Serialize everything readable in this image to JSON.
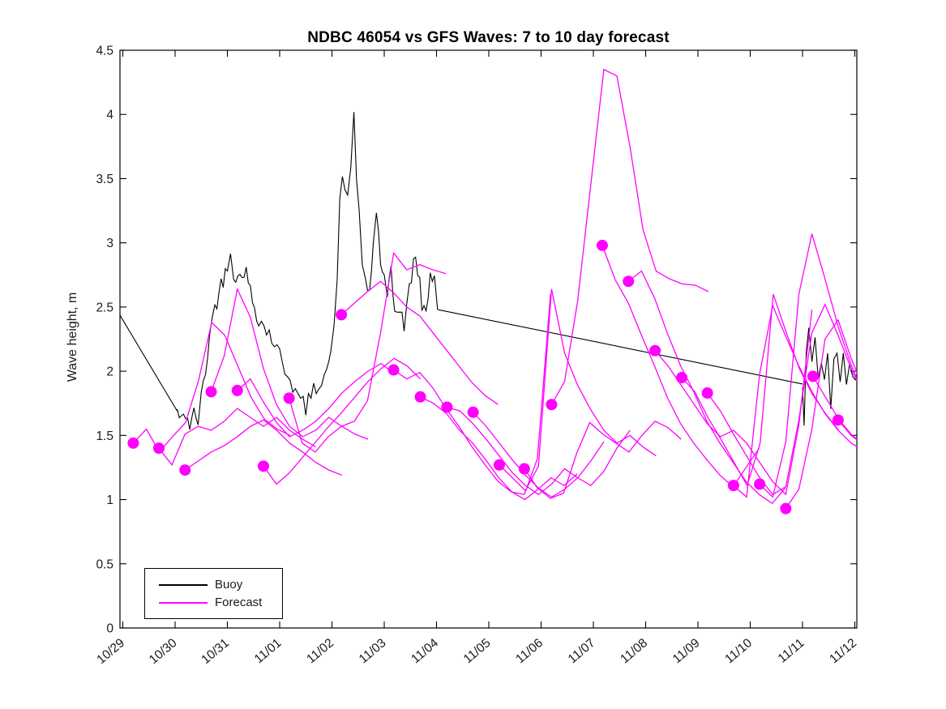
{
  "title": "NDBC 46054 vs GFS Waves: 7 to 10 day forecast",
  "ylabel": "Wave height, m",
  "legend": {
    "items": [
      {
        "label": "Buoy",
        "color": "#000000"
      },
      {
        "label": "Forecast",
        "color": "#ff00ff"
      }
    ]
  },
  "chart_data": {
    "type": "line",
    "title": "NDBC 46054 vs GFS Waves: 7 to 10 day forecast",
    "xlabel": "",
    "ylabel": "Wave height, m",
    "x_tick_labels": [
      "10/29",
      "10/30",
      "10/31",
      "11/01",
      "11/02",
      "11/03",
      "11/04",
      "11/05",
      "11/06",
      "11/07",
      "11/08",
      "11/09",
      "11/10",
      "11/11",
      "11/12"
    ],
    "yticks": [
      0,
      0.5,
      1,
      1.5,
      2,
      2.5,
      3,
      3.5,
      4,
      4.5
    ],
    "ylim": [
      0,
      4.5
    ],
    "xlim_days": [
      -0.06,
      14.06
    ],
    "grid": false,
    "legend_position": "bottom-left",
    "colors": {
      "buoy": "#000000",
      "forecast": "#ff00ff"
    },
    "units": "m",
    "buoy_noise": {
      "amplitude": 0.075,
      "step_days": 0.045,
      "seed": 42
    },
    "buoy_segments": [
      {
        "noisy": false,
        "points": [
          [
            -0.06,
            2.44
          ],
          [
            1.04,
            1.69
          ]
        ]
      },
      {
        "noisy": true,
        "points": [
          [
            1.04,
            1.69
          ],
          [
            1.12,
            1.6
          ],
          [
            1.2,
            1.68
          ],
          [
            1.28,
            1.58
          ],
          [
            1.36,
            1.66
          ],
          [
            1.44,
            1.62
          ],
          [
            1.5,
            1.78
          ],
          [
            1.58,
            2.0
          ],
          [
            1.66,
            2.28
          ],
          [
            1.76,
            2.5
          ],
          [
            1.84,
            2.62
          ],
          [
            1.92,
            2.72
          ],
          [
            2.0,
            2.85
          ],
          [
            2.06,
            2.95
          ],
          [
            2.12,
            2.78
          ],
          [
            2.2,
            2.7
          ],
          [
            2.28,
            2.8
          ],
          [
            2.36,
            2.76
          ],
          [
            2.44,
            2.62
          ],
          [
            2.52,
            2.5
          ],
          [
            2.6,
            2.42
          ],
          [
            2.7,
            2.34
          ],
          [
            2.8,
            2.3
          ],
          [
            2.9,
            2.22
          ],
          [
            3.0,
            2.12
          ],
          [
            3.1,
            2.02
          ],
          [
            3.2,
            1.96
          ],
          [
            3.3,
            1.84
          ],
          [
            3.4,
            1.76
          ],
          [
            3.5,
            1.72
          ],
          [
            3.6,
            1.8
          ],
          [
            3.7,
            1.88
          ],
          [
            3.8,
            1.96
          ],
          [
            3.9,
            2.02
          ],
          [
            3.98,
            2.1
          ],
          [
            4.04,
            2.42
          ],
          [
            4.1,
            2.68
          ],
          [
            4.15,
            3.28
          ],
          [
            4.2,
            3.55
          ],
          [
            4.25,
            3.38
          ],
          [
            4.3,
            3.42
          ],
          [
            4.36,
            3.58
          ],
          [
            4.42,
            3.97
          ],
          [
            4.47,
            3.55
          ],
          [
            4.52,
            3.18
          ],
          [
            4.58,
            2.82
          ],
          [
            4.64,
            2.66
          ],
          [
            4.72,
            2.62
          ],
          [
            4.79,
            2.98
          ],
          [
            4.85,
            3.26
          ],
          [
            4.93,
            2.86
          ],
          [
            5.0,
            2.7
          ],
          [
            5.06,
            2.55
          ],
          [
            5.13,
            2.76
          ],
          [
            5.2,
            2.46
          ],
          [
            5.3,
            2.52
          ],
          [
            5.38,
            2.34
          ],
          [
            5.48,
            2.62
          ],
          [
            5.56,
            2.88
          ],
          [
            5.64,
            2.8
          ],
          [
            5.72,
            2.52
          ],
          [
            5.8,
            2.44
          ],
          [
            5.88,
            2.78
          ],
          [
            5.96,
            2.72
          ],
          [
            6.02,
            2.48
          ]
        ]
      },
      {
        "noisy": false,
        "points": [
          [
            6.02,
            2.48
          ],
          [
            13.0,
            1.9
          ]
        ]
      },
      {
        "noisy": true,
        "points": [
          [
            13.0,
            1.9
          ],
          [
            13.03,
            1.62
          ],
          [
            13.07,
            2.12
          ],
          [
            13.12,
            2.28
          ],
          [
            13.18,
            2.1
          ],
          [
            13.24,
            2.22
          ],
          [
            13.3,
            1.96
          ],
          [
            13.36,
            2.12
          ],
          [
            13.42,
            1.88
          ],
          [
            13.48,
            2.16
          ],
          [
            13.54,
            1.78
          ],
          [
            13.6,
            2.06
          ],
          [
            13.66,
            2.12
          ],
          [
            13.72,
            1.86
          ],
          [
            13.78,
            2.08
          ],
          [
            13.84,
            1.94
          ],
          [
            13.9,
            2.04
          ],
          [
            13.96,
            1.96
          ],
          [
            14.06,
            2.0
          ]
        ]
      }
    ],
    "forecast_step_days": 0.25,
    "forecast_runs": [
      {
        "start_day": 0.2,
        "values": [
          1.44,
          1.55,
          1.37,
          1.49,
          1.6,
          1.93,
          2.38,
          2.28,
          2.04,
          1.8,
          1.63,
          1.55,
          1.5
        ]
      },
      {
        "start_day": 0.69,
        "values": [
          1.4,
          1.27,
          1.51,
          1.57,
          1.54,
          1.61,
          1.71,
          1.64,
          1.57,
          1.64,
          1.54,
          1.47,
          1.41
        ]
      },
      {
        "start_day": 1.19,
        "values": [
          1.23,
          1.3,
          1.37,
          1.42,
          1.49,
          1.57,
          1.62,
          1.54,
          1.44,
          1.37,
          1.29,
          1.23,
          1.19
        ]
      },
      {
        "start_day": 1.69,
        "values": [
          1.84,
          2.12,
          2.64,
          2.42,
          2.02,
          1.74,
          1.57,
          1.49,
          1.54,
          1.64,
          1.57,
          1.51,
          1.47
        ]
      },
      {
        "start_day": 2.19,
        "values": [
          1.85,
          1.94,
          1.76,
          1.6,
          1.49,
          1.54,
          1.61,
          1.71,
          1.83,
          1.92,
          2.0,
          2.06,
          1.98
        ]
      },
      {
        "start_day": 2.69,
        "values": [
          1.26,
          1.12,
          1.21,
          1.33,
          1.45,
          1.57,
          1.68,
          1.8,
          1.92,
          2.02,
          2.1,
          2.04,
          1.94
        ]
      },
      {
        "start_day": 3.18,
        "values": [
          1.79,
          1.44,
          1.37,
          1.49,
          1.57,
          1.61,
          1.77,
          2.3,
          2.92,
          2.79,
          2.83,
          2.79,
          2.76
        ]
      },
      {
        "start_day": 4.18,
        "values": [
          2.44,
          2.53,
          2.62,
          2.7,
          2.61,
          2.5,
          2.43,
          2.3,
          2.17,
          2.04,
          1.91,
          1.81,
          1.74
        ]
      },
      {
        "start_day": 5.18,
        "values": [
          2.01,
          1.94,
          1.99,
          1.87,
          1.71,
          1.57,
          1.41,
          1.27,
          1.14,
          1.06,
          1.04,
          1.32,
          2.6
        ]
      },
      {
        "start_day": 5.69,
        "values": [
          1.8,
          1.75,
          1.67,
          1.54,
          1.44,
          1.31,
          1.17,
          1.06,
          1.0,
          1.08,
          1.17,
          1.11,
          1.2
        ]
      },
      {
        "start_day": 6.2,
        "values": [
          1.72,
          1.69,
          1.59,
          1.47,
          1.34,
          1.21,
          1.11,
          1.04,
          1.12,
          1.24,
          1.17,
          1.3,
          1.45
        ]
      },
      {
        "start_day": 6.7,
        "values": [
          1.68,
          1.57,
          1.44,
          1.31,
          1.19,
          1.09,
          1.02,
          1.08,
          1.17,
          1.11,
          1.22,
          1.4,
          1.54
        ]
      },
      {
        "start_day": 7.2,
        "values": [
          1.27,
          1.17,
          1.07,
          1.26,
          2.64,
          2.14,
          1.89,
          1.7,
          1.54,
          1.44,
          1.5,
          1.41,
          1.34
        ]
      },
      {
        "start_day": 7.68,
        "values": [
          1.24,
          1.09,
          1.01,
          1.05,
          1.36,
          1.6,
          1.51,
          1.44,
          1.37,
          1.5,
          1.61,
          1.56,
          1.47
        ]
      },
      {
        "start_day": 8.2,
        "values": [
          1.74,
          1.92,
          2.55,
          3.45,
          4.35,
          4.3,
          3.75,
          3.1,
          2.78,
          2.72,
          2.68,
          2.67,
          2.62
        ]
      },
      {
        "start_day": 9.17,
        "values": [
          2.98,
          2.71,
          2.53,
          2.28,
          2.04,
          1.79,
          1.59,
          1.44,
          1.31,
          1.19,
          1.1,
          1.25,
          1.4
        ]
      },
      {
        "start_day": 9.67,
        "values": [
          2.7,
          2.78,
          2.57,
          2.29,
          2.04,
          1.84,
          1.61,
          1.44,
          1.29,
          1.14,
          1.04,
          0.97,
          1.09
        ]
      },
      {
        "start_day": 10.18,
        "values": [
          2.16,
          2.04,
          1.89,
          1.74,
          1.59,
          1.49,
          1.54,
          1.44,
          1.29,
          1.14,
          1.04,
          1.58,
          2.48
        ]
      },
      {
        "start_day": 10.69,
        "values": [
          1.95,
          1.84,
          1.64,
          1.47,
          1.29,
          1.11,
          1.44,
          2.6,
          2.3,
          2.02,
          1.82,
          1.67,
          1.54
        ]
      },
      {
        "start_day": 11.18,
        "values": [
          1.83,
          1.69,
          1.51,
          1.34,
          1.17,
          1.04,
          1.1,
          1.62,
          2.3,
          2.52,
          2.28,
          2.02,
          1.8
        ]
      },
      {
        "start_day": 11.68,
        "values": [
          1.11,
          1.02,
          1.98,
          2.51,
          2.27,
          2.04,
          1.84,
          1.67,
          1.54,
          1.44,
          1.38
        ]
      },
      {
        "start_day": 12.18,
        "values": [
          1.12,
          1.02,
          1.45,
          2.6,
          3.07,
          2.72,
          2.35,
          2.05,
          1.8
        ]
      },
      {
        "start_day": 12.68,
        "values": [
          0.93,
          1.08,
          1.55,
          2.25,
          2.4,
          2.1,
          1.85
        ]
      },
      {
        "start_day": 13.2,
        "values": [
          1.96,
          1.79,
          1.62,
          1.5,
          1.42
        ]
      },
      {
        "start_day": 13.68,
        "values": [
          1.62,
          1.5,
          1.42
        ]
      }
    ]
  }
}
